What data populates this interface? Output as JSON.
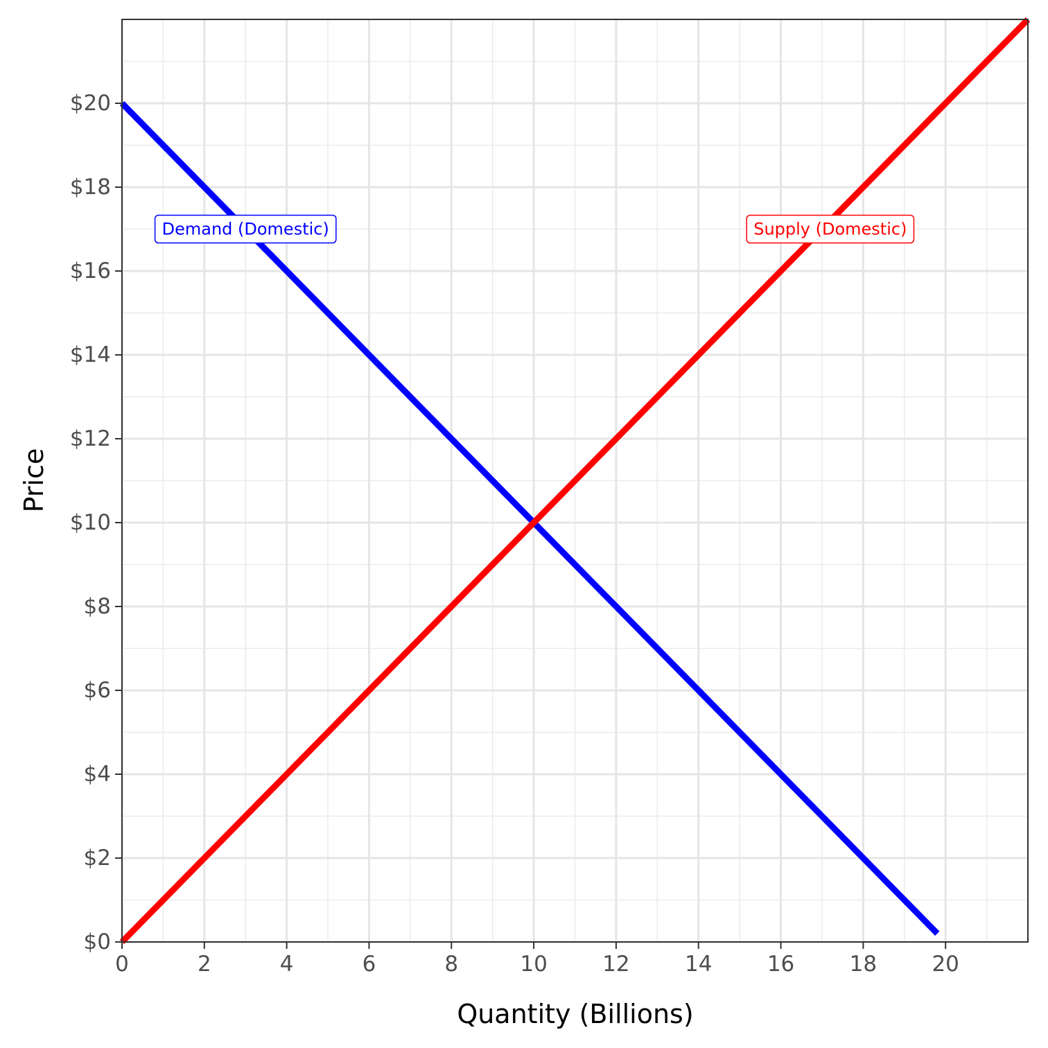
{
  "chart_data": {
    "type": "line",
    "xlabel": "Quantity (Billions)",
    "ylabel": "Price",
    "xlim": [
      0,
      22
    ],
    "ylim": [
      0,
      22
    ],
    "x_ticks": [
      0,
      2,
      4,
      6,
      8,
      10,
      12,
      14,
      16,
      18,
      20
    ],
    "x_tick_labels": [
      "0",
      "2",
      "4",
      "6",
      "8",
      "10",
      "12",
      "14",
      "16",
      "18",
      "20"
    ],
    "y_ticks": [
      0,
      2,
      4,
      6,
      8,
      10,
      12,
      14,
      16,
      18,
      20
    ],
    "y_tick_labels": [
      "$0",
      "$2",
      "$4",
      "$6",
      "$8",
      "$10",
      "$12",
      "$14",
      "$16",
      "$18",
      "$20"
    ],
    "grid": true,
    "series": [
      {
        "name": "Demand (Domestic)",
        "color": "#0000ff",
        "points": [
          [
            0,
            20
          ],
          [
            19.8,
            0.2
          ]
        ],
        "label_at": [
          3,
          17
        ]
      },
      {
        "name": "Supply (Domestic)",
        "color": "#ff0000",
        "points": [
          [
            0,
            0
          ],
          [
            22,
            22
          ]
        ],
        "label_at": [
          17.2,
          17
        ]
      }
    ]
  }
}
